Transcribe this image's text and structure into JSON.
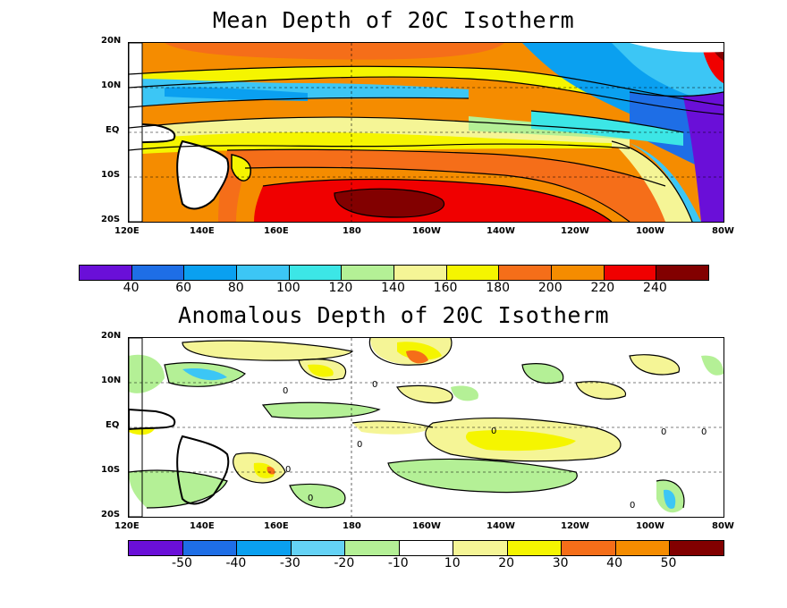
{
  "panels": [
    {
      "title": "Mean Depth of 20C Isotherm",
      "lat_ticks": [
        "20N",
        "10N",
        "EQ",
        "10S",
        "20S"
      ],
      "lon_ticks": [
        "120E",
        "140E",
        "160E",
        "180",
        "160W",
        "140W",
        "120W",
        "100W",
        "80W"
      ],
      "colorbar": {
        "labels": [
          "40",
          "60",
          "80",
          "100",
          "120",
          "140",
          "160",
          "180",
          "200",
          "220",
          "240"
        ],
        "colors": [
          "#6a0fd8",
          "#1e6ee6",
          "#0aa0f0",
          "#3cc6f5",
          "#3ce6e6",
          "#b4f096",
          "#f5f596",
          "#f5f500",
          "#f56e19",
          "#f58c00",
          "#f00000",
          "#820000"
        ]
      }
    },
    {
      "title": "Anomalous Depth of 20C Isotherm",
      "lat_ticks": [
        "20N",
        "10N",
        "EQ",
        "10S",
        "20S"
      ],
      "lon_ticks": [
        "120E",
        "140E",
        "160E",
        "180",
        "160W",
        "140W",
        "120W",
        "100W",
        "80W"
      ],
      "colorbar": {
        "labels": [
          "-50",
          "-40",
          "-30",
          "-20",
          "-10",
          "10",
          "20",
          "30",
          "40",
          "50"
        ],
        "colors": [
          "#6a0fd8",
          "#1e6ee6",
          "#0aa0f0",
          "#64d2f5",
          "#b4f096",
          "#ffffff",
          "#f5f596",
          "#f5f500",
          "#f56e19",
          "#f58c00",
          "#820000"
        ]
      },
      "contour_labels": [
        "0",
        "0",
        "0",
        "0",
        "0",
        "0",
        "0",
        "0",
        "0"
      ]
    }
  ]
}
